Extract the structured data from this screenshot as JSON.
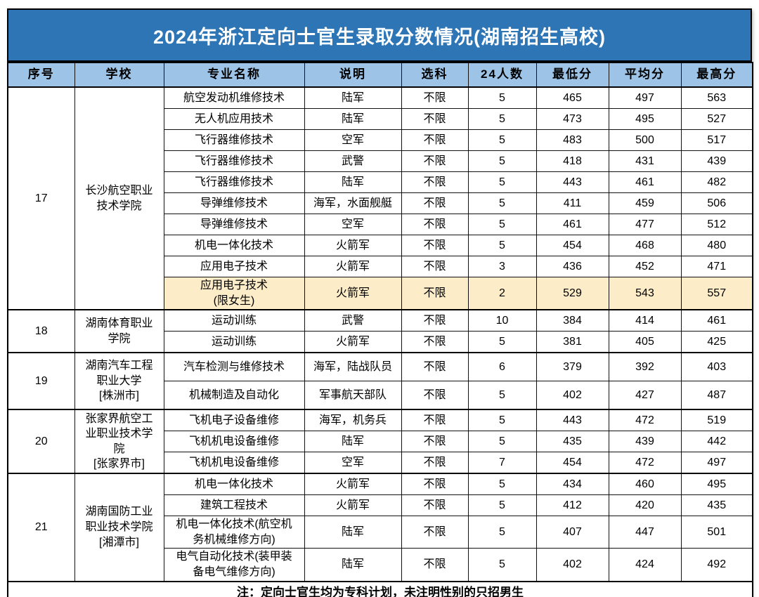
{
  "title": "2024年浙江定向士官生录取分数情况(湖南招生高校)",
  "columns": [
    "序号",
    "学校",
    "专业名称",
    "说明",
    "选科",
    "24人数",
    "最低分",
    "平均分",
    "最高分"
  ],
  "sections": [
    {
      "no": "17",
      "school": "长沙航空职业\n技术学院",
      "rows": [
        {
          "major": "航空发动机维修技术",
          "desc": "陆军",
          "subject": "不限",
          "count": "5",
          "min": "465",
          "avg": "497",
          "max": "563"
        },
        {
          "major": "无人机应用技术",
          "desc": "陆军",
          "subject": "不限",
          "count": "5",
          "min": "473",
          "avg": "495",
          "max": "527"
        },
        {
          "major": "飞行器维修技术",
          "desc": "空军",
          "subject": "不限",
          "count": "5",
          "min": "483",
          "avg": "500",
          "max": "517"
        },
        {
          "major": "飞行器维修技术",
          "desc": "武警",
          "subject": "不限",
          "count": "5",
          "min": "418",
          "avg": "431",
          "max": "439"
        },
        {
          "major": "飞行器维修技术",
          "desc": "陆军",
          "subject": "不限",
          "count": "5",
          "min": "443",
          "avg": "461",
          "max": "482"
        },
        {
          "major": "导弹维修技术",
          "desc": "海军，水面舰艇",
          "subject": "不限",
          "count": "5",
          "min": "411",
          "avg": "459",
          "max": "506"
        },
        {
          "major": "导弹维修技术",
          "desc": "空军",
          "subject": "不限",
          "count": "5",
          "min": "461",
          "avg": "477",
          "max": "512"
        },
        {
          "major": "机电一体化技术",
          "desc": "火箭军",
          "subject": "不限",
          "count": "5",
          "min": "454",
          "avg": "468",
          "max": "480"
        },
        {
          "major": "应用电子技术",
          "desc": "火箭军",
          "subject": "不限",
          "count": "3",
          "min": "436",
          "avg": "452",
          "max": "471"
        },
        {
          "major": "应用电子技术\n(限女生)",
          "desc": "火箭军",
          "subject": "不限",
          "count": "2",
          "min": "529",
          "avg": "543",
          "max": "557",
          "highlight": true
        }
      ]
    },
    {
      "no": "18",
      "school": "湖南体育职业\n学院",
      "rows": [
        {
          "major": "运动训练",
          "desc": "武警",
          "subject": "不限",
          "count": "10",
          "min": "384",
          "avg": "414",
          "max": "461"
        },
        {
          "major": "运动训练",
          "desc": "火箭军",
          "subject": "不限",
          "count": "5",
          "min": "381",
          "avg": "405",
          "max": "425"
        }
      ]
    },
    {
      "no": "19",
      "school": "湖南汽车工程\n职业大学\n[株洲市]",
      "rows": [
        {
          "major": "汽车检测与维修技术",
          "desc": "海军，陆战队员",
          "subject": "不限",
          "count": "6",
          "min": "379",
          "avg": "392",
          "max": "403"
        },
        {
          "major": "机械制造及自动化",
          "desc": "军事航天部队",
          "subject": "不限",
          "count": "5",
          "min": "402",
          "avg": "427",
          "max": "487"
        }
      ]
    },
    {
      "no": "20",
      "school": "张家界航空工\n业职业技术学\n院\n[张家界市]",
      "rows": [
        {
          "major": "飞机电子设备维修",
          "desc": "海军，机务兵",
          "subject": "不限",
          "count": "5",
          "min": "443",
          "avg": "472",
          "max": "519"
        },
        {
          "major": "飞机机电设备维修",
          "desc": "陆军",
          "subject": "不限",
          "count": "5",
          "min": "435",
          "avg": "439",
          "max": "442"
        },
        {
          "major": "飞机机电设备维修",
          "desc": "空军",
          "subject": "不限",
          "count": "7",
          "min": "454",
          "avg": "472",
          "max": "497"
        }
      ]
    },
    {
      "no": "21",
      "school": "湖南国防工业\n职业技术学院\n[湘潭市]",
      "rows": [
        {
          "major": "机电一体化技术",
          "desc": "火箭军",
          "subject": "不限",
          "count": "5",
          "min": "434",
          "avg": "460",
          "max": "495"
        },
        {
          "major": "建筑工程技术",
          "desc": "火箭军",
          "subject": "不限",
          "count": "5",
          "min": "412",
          "avg": "420",
          "max": "435"
        },
        {
          "major": "机电一体化技术(航空机\n务机械维修方向)",
          "desc": "陆军",
          "subject": "不限",
          "count": "5",
          "min": "407",
          "avg": "447",
          "max": "501"
        },
        {
          "major": "电气自动化技术(装甲装\n备电气维修方向)",
          "desc": "陆军",
          "subject": "不限",
          "count": "5",
          "min": "402",
          "avg": "424",
          "max": "492"
        }
      ]
    }
  ],
  "note": "注：定向士官生均为专科计划，未注明性别的只招男生",
  "colors": {
    "title_bg": "#2e75b6",
    "header_bg": "#9dc3e6",
    "highlight_bg": "#fcecc7",
    "border": "#000000",
    "title_text": "#ffffff",
    "body_text": "#000000"
  }
}
